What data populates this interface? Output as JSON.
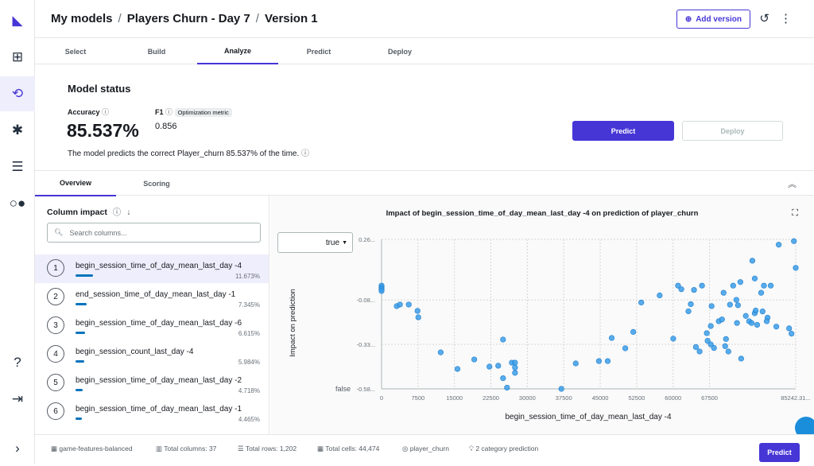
{
  "header": {
    "crumbs": [
      "My models",
      "Players Churn - Day 7",
      "Version 1"
    ],
    "add_version": "Add version"
  },
  "tabs": [
    "Select",
    "Build",
    "Analyze",
    "Predict",
    "Deploy"
  ],
  "status": {
    "title": "Model status",
    "accuracy_label": "Accuracy",
    "accuracy": "85.537%",
    "f1_label": "F1",
    "f1_badge": "Optimization metric",
    "f1": "0.856",
    "desc": "The model predicts the correct Player_churn 85.537% of the time.",
    "predict": "Predict",
    "deploy": "Deploy"
  },
  "subtabs": [
    "Overview",
    "Scoring"
  ],
  "column_impact": {
    "title": "Column impact",
    "search_placeholder": "Search columns...",
    "items": [
      {
        "rank": "1",
        "name": "begin_session_time_of_day_mean_last_day -4",
        "pct": "11.673%",
        "value": 11.673
      },
      {
        "rank": "2",
        "name": "end_session_time_of_day_mean_last_day -1",
        "pct": "7.345%",
        "value": 7.345
      },
      {
        "rank": "3",
        "name": "begin_session_time_of_day_mean_last_day -6",
        "pct": "6.615%",
        "value": 6.615
      },
      {
        "rank": "4",
        "name": "begin_session_count_last_day -4",
        "pct": "5.984%",
        "value": 5.984
      },
      {
        "rank": "5",
        "name": "begin_session_time_of_day_mean_last_day -2",
        "pct": "4.718%",
        "value": 4.718
      },
      {
        "rank": "6",
        "name": "begin_session_time_of_day_mean_last_day -1",
        "pct": "4.465%",
        "value": 4.465
      }
    ]
  },
  "chart_select": "true",
  "chart_data": {
    "type": "scatter",
    "title": "Impact of begin_session_time_of_day_mean_last_day -4 on prediction of player_churn",
    "xlabel": "begin_session_time_of_day_mean_last_day -4",
    "ylabel": "Impact on prediction",
    "xlim": [
      0,
      85242.31
    ],
    "ylim": [
      -0.58,
      0.26
    ],
    "xticks": [
      "0",
      "7500",
      "15000",
      "22500",
      "30000",
      "37500",
      "45000",
      "52500",
      "60000",
      "67500",
      "85242.31..."
    ],
    "xtick_values": [
      0,
      7500,
      15000,
      22500,
      30000,
      37500,
      45000,
      52500,
      60000,
      67500,
      85242.31
    ],
    "yticks": [
      "0.26...",
      "-0.08...",
      "-0.33...",
      "-0.58..."
    ],
    "ytick_values": [
      0.26,
      -0.08,
      -0.33,
      -0.58
    ],
    "y_top_label": "",
    "y_bottom_label": "false",
    "color": "#3b9ce6",
    "points": [
      [
        0,
        -0.0
      ],
      [
        0,
        -0.01
      ],
      [
        0,
        -0.02
      ],
      [
        0,
        -0.03
      ],
      [
        3125,
        -0.115
      ],
      [
        3783,
        -0.106
      ],
      [
        5592,
        -0.106
      ],
      [
        7401,
        -0.142
      ],
      [
        7566,
        -0.178
      ],
      [
        12171,
        -0.375
      ],
      [
        15625,
        -0.468
      ],
      [
        19079,
        -0.415
      ],
      [
        22204,
        -0.455
      ],
      [
        24013,
        -0.45
      ],
      [
        25000,
        -0.303
      ],
      [
        25000,
        -0.52
      ],
      [
        25822,
        -0.573
      ],
      [
        26809,
        -0.433
      ],
      [
        27467,
        -0.433
      ],
      [
        27467,
        -0.46
      ],
      [
        27467,
        -0.49
      ],
      [
        37007,
        -0.58
      ],
      [
        39967,
        -0.437
      ],
      [
        44737,
        -0.424
      ],
      [
        46546,
        -0.424
      ],
      [
        47368,
        -0.294
      ],
      [
        50164,
        -0.352
      ],
      [
        51809,
        -0.26
      ],
      [
        53454,
        -0.095
      ],
      [
        57237,
        -0.055
      ],
      [
        60033,
        -0.298
      ],
      [
        61020,
        0.0
      ],
      [
        63158,
        -0.144
      ],
      [
        63651,
        -0.104
      ],
      [
        64309,
        -0.024
      ],
      [
        65461,
        -0.37
      ],
      [
        66941,
        -0.267
      ],
      [
        67763,
        -0.227
      ],
      [
        67928,
        -0.115
      ],
      [
        70395,
        -0.04
      ],
      [
        70724,
        -0.34
      ],
      [
        70889,
        -0.3
      ],
      [
        71382,
        -0.37
      ],
      [
        71711,
        -0.107
      ],
      [
        72368,
        0.0
      ],
      [
        73355,
        -0.11
      ],
      [
        73026,
        -0.08
      ],
      [
        73849,
        0.02
      ],
      [
        76316,
        0.14
      ],
      [
        76810,
        0.04
      ],
      [
        78125,
        -0.04
      ],
      [
        79441,
        -0.18
      ],
      [
        80099,
        0.0
      ],
      [
        81743,
        0.23
      ],
      [
        84868,
        0.25
      ],
      [
        85242,
        0.1
      ],
      [
        83882,
        -0.24
      ],
      [
        84375,
        -0.27
      ],
      [
        81250,
        -0.23
      ],
      [
        69408,
        -0.2
      ],
      [
        70066,
        -0.19
      ],
      [
        67763,
        -0.33
      ],
      [
        68421,
        -0.35
      ],
      [
        67105,
        -0.31
      ],
      [
        74013,
        -0.41
      ],
      [
        73158,
        -0.21
      ],
      [
        74967,
        -0.17
      ],
      [
        75658,
        -0.2
      ],
      [
        76804,
        -0.155
      ],
      [
        77300,
        -0.22
      ],
      [
        78421,
        -0.145
      ],
      [
        79278,
        -0.2
      ],
      [
        78700,
        0.0
      ],
      [
        65954,
        0.0
      ],
      [
        61700,
        -0.02
      ],
      [
        64700,
        -0.345
      ],
      [
        77000,
        -0.14
      ],
      [
        76150,
        -0.21
      ]
    ]
  },
  "footer": {
    "dataset": "game-features-balanced",
    "columns": "Total columns: 37",
    "rows": "Total rows: 1,202",
    "cells": "Total cells: 44,474",
    "target": "player_churn",
    "type": "2 category prediction",
    "predict": "Predict"
  }
}
